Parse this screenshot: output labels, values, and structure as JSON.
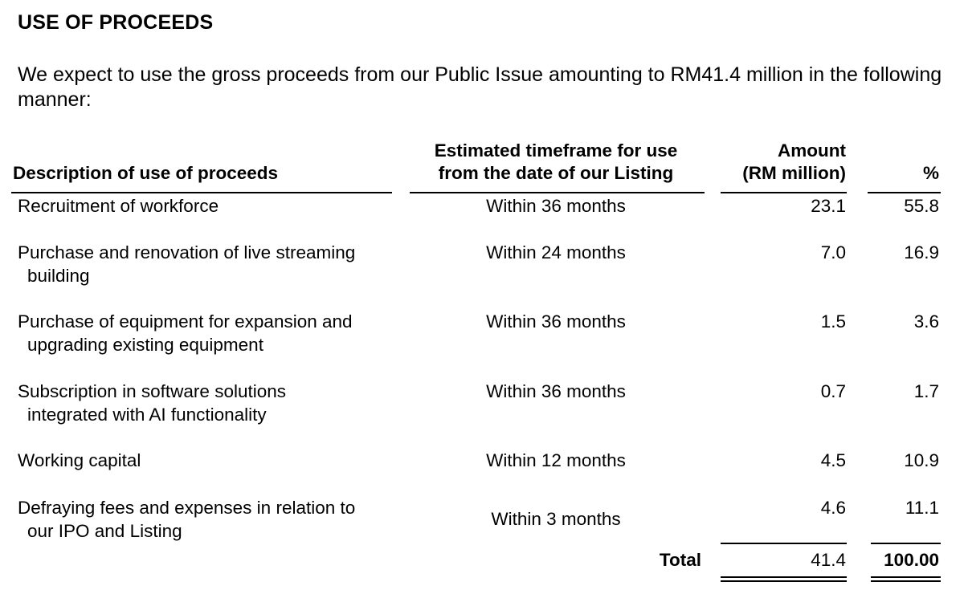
{
  "heading": "USE OF PROCEEDS",
  "intro": "We expect to use the gross proceeds from our Public Issue amounting to RM41.4 million in the following manner:",
  "table": {
    "headers": {
      "description": "Description of use of proceeds",
      "timeframe_line1": "Estimated timeframe for use",
      "timeframe_line2": "from the date of our Listing",
      "amount_line1": "Amount",
      "amount_line2": "(RM million)",
      "percent": "%"
    },
    "rows": [
      {
        "desc_line1": "Recruitment of workforce",
        "desc_line2": "",
        "timeframe": "Within 36 months",
        "amount": "23.1",
        "percent": "55.8"
      },
      {
        "desc_line1": "Purchase and renovation of live streaming",
        "desc_line2": "building",
        "timeframe": "Within 24 months",
        "amount": "7.0",
        "percent": "16.9"
      },
      {
        "desc_line1": "Purchase of equipment for expansion and",
        "desc_line2": "upgrading existing equipment",
        "timeframe": "Within 36 months",
        "amount": "1.5",
        "percent": "3.6"
      },
      {
        "desc_line1_words": [
          "Subscription",
          "in",
          "software",
          "solutions"
        ],
        "desc_line2": "integrated with AI functionality",
        "timeframe": "Within 36 months",
        "amount": "0.7",
        "percent": "1.7"
      },
      {
        "desc_line1": "Working capital",
        "desc_line2": "",
        "timeframe": "Within 12 months",
        "amount": "4.5",
        "percent": "10.9"
      },
      {
        "desc_line1": "Defraying fees and expenses in relation to",
        "desc_line2": "our IPO and Listing",
        "timeframe": "Within 3 months",
        "amount": "4.6",
        "percent": "11.1"
      }
    ],
    "total": {
      "label": "Total",
      "amount": "41.4",
      "percent": "100.00"
    }
  }
}
